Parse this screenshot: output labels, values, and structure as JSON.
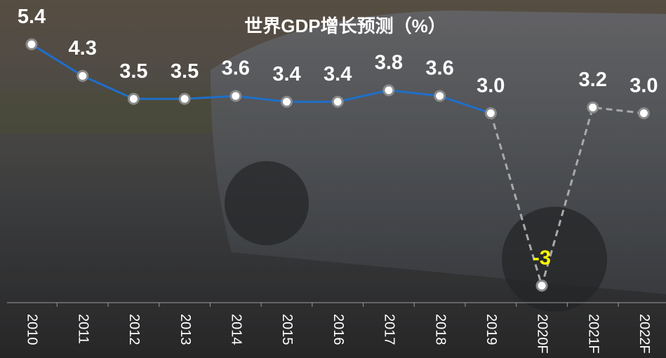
{
  "chart_data": {
    "type": "line",
    "title": "世界GDP增长预测（%）",
    "categories": [
      "2010",
      "2011",
      "2012",
      "2013",
      "2014",
      "2015",
      "2016",
      "2017",
      "2018",
      "2019",
      "2020F",
      "2021F",
      "2022F"
    ],
    "series": [
      {
        "color": "#1f6fc9",
        "dash": false,
        "values": [
          5.4,
          4.3,
          3.5,
          3.5,
          3.6,
          3.4,
          3.4,
          3.8,
          3.6,
          3,
          null,
          null,
          null
        ],
        "value_labels": [
          "5.4",
          "4.3",
          "3.5",
          "3.5",
          "3.6",
          "3.4",
          "3.4",
          "3.8",
          "3.6",
          "3.0",
          null,
          null,
          null
        ]
      },
      {
        "color": "#a9a9a9",
        "dash": true,
        "values": [
          null,
          null,
          null,
          null,
          null,
          null,
          null,
          null,
          null,
          3,
          -3,
          3.2,
          3
        ],
        "value_labels": [
          null,
          null,
          null,
          null,
          null,
          null,
          null,
          null,
          null,
          null,
          "-3",
          "3.2",
          "3.0"
        ]
      }
    ],
    "negative_label_color": "#ffff00",
    "label_color": "#ffffff",
    "ylim": [
      -3.3,
      5.6
    ]
  }
}
